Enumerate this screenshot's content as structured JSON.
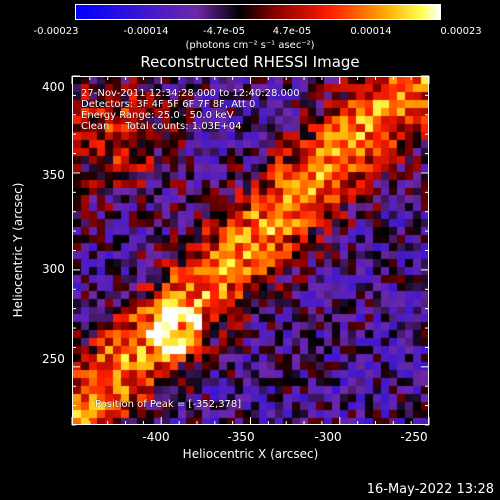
{
  "colorbar": {
    "ticks": [
      "-0.00023",
      "-0.00014",
      "-4.7e-05",
      "4.7e-05",
      "0.00014",
      "0.00023"
    ],
    "units": "(photons cm⁻² s⁻¹ asec⁻²)"
  },
  "plot": {
    "title": "Reconstructed RHESSI Image",
    "xlabel": "Heliocentric X (arcsec)",
    "ylabel": "Heliocentric Y (arcsec)",
    "x_ticks": [
      "-400",
      "-350",
      "-300",
      "-250"
    ],
    "y_ticks": [
      "400",
      "350",
      "300",
      "250"
    ],
    "annotations": [
      "27-Nov-2011 12:34:28.000 to 12:40:28.000",
      "Detectors: 3F 4F 5F 6F 7F 8F, Att 0",
      "Energy Range: 25.0 - 50.0 keV",
      "Clean     Total counts: 1.03E+04"
    ],
    "peak": "Position of Peak = [-352,378]"
  },
  "footer": {
    "date": "16-May-2022 13:28"
  }
}
